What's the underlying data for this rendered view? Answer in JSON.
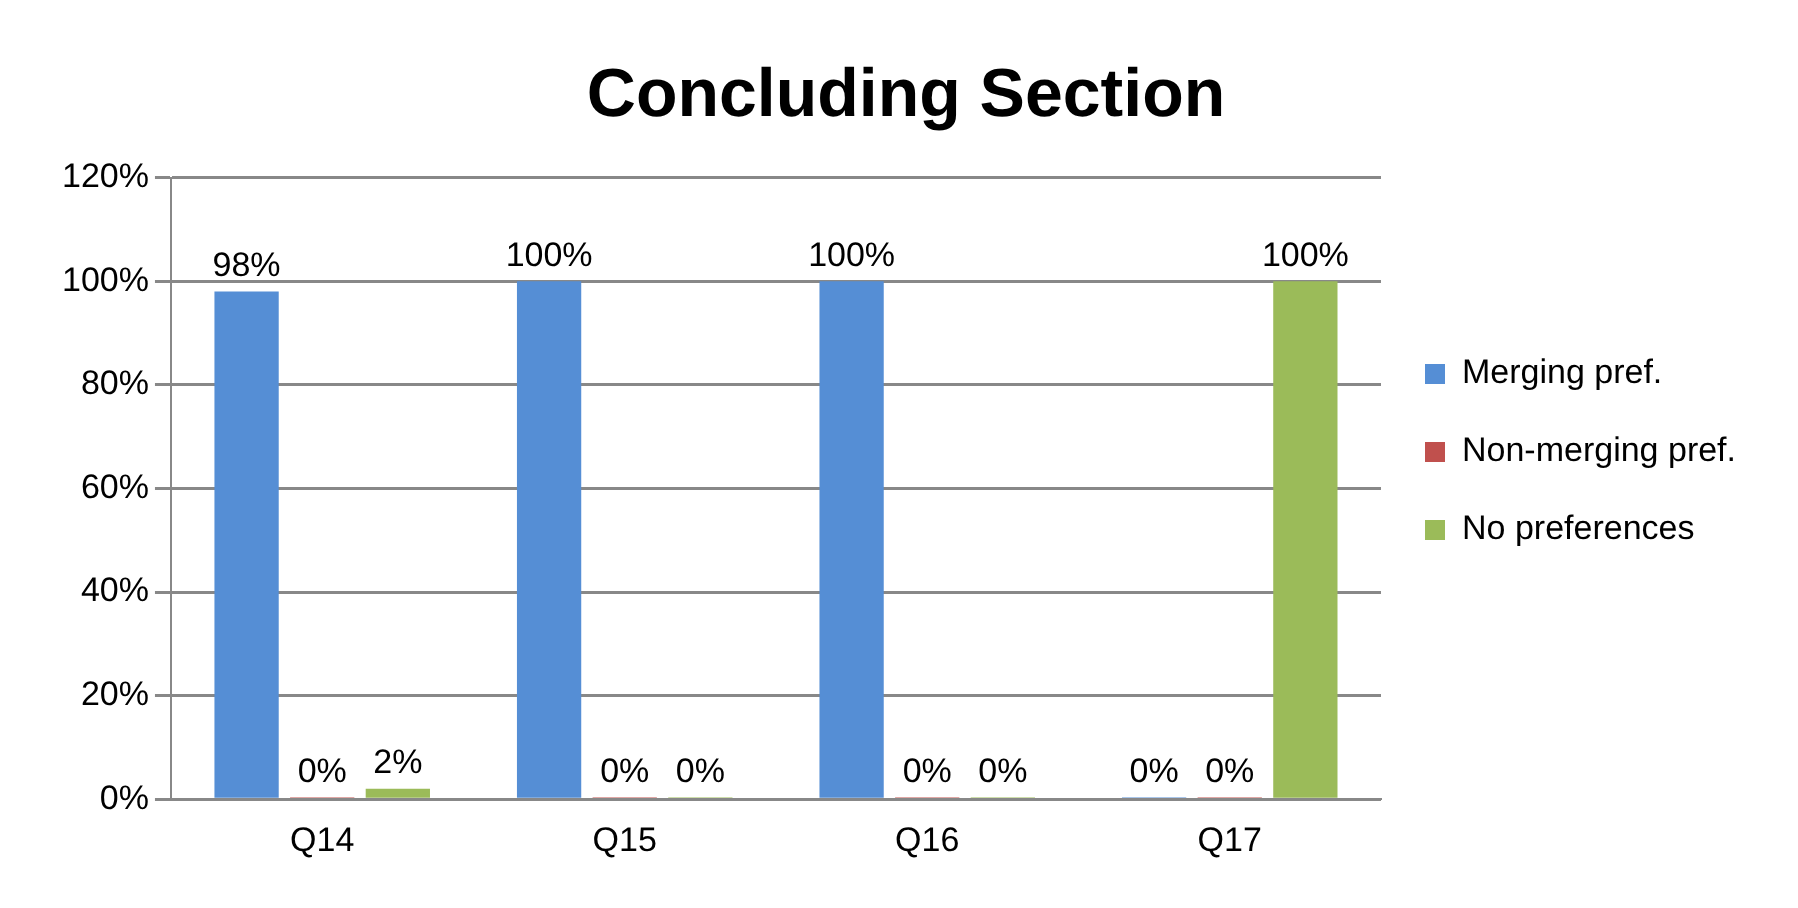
{
  "chart_data": {
    "type": "bar",
    "title": "Concluding Section",
    "categories": [
      "Q14",
      "Q15",
      "Q16",
      "Q17"
    ],
    "series": [
      {
        "name": "Merging pref.",
        "color": "#558ed5",
        "values": [
          98,
          100,
          100,
          0
        ],
        "value_labels": [
          "98%",
          "100%",
          "100%",
          "0%"
        ]
      },
      {
        "name": "Non-merging pref.",
        "color": "#c0504d",
        "values": [
          0,
          0,
          0,
          0
        ],
        "value_labels": [
          "0%",
          "0%",
          "0%",
          "0%"
        ]
      },
      {
        "name": "No preferences",
        "color": "#9bbb59",
        "values": [
          2,
          0,
          0,
          100
        ],
        "value_labels": [
          "2%",
          "0%",
          "0%",
          "100%"
        ]
      }
    ],
    "ylim": [
      0,
      120
    ],
    "yticks": [
      {
        "value": 0,
        "label": "0%"
      },
      {
        "value": 20,
        "label": "20%"
      },
      {
        "value": 40,
        "label": "40%"
      },
      {
        "value": 60,
        "label": "60%"
      },
      {
        "value": 80,
        "label": "80%"
      },
      {
        "value": 100,
        "label": "100%"
      },
      {
        "value": 120,
        "label": "120%"
      }
    ],
    "grid": "y",
    "legend": "right"
  }
}
